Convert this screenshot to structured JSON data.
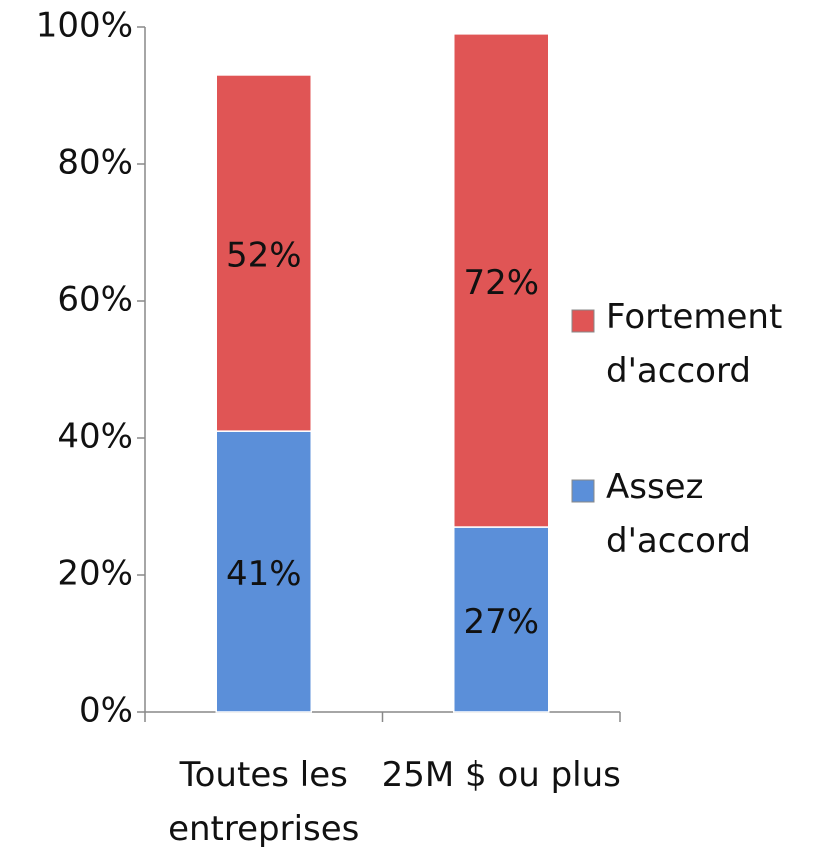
{
  "chart_data": {
    "type": "stacked_bar",
    "categories": [
      "Toutes les entreprises",
      "25M $ ou plus"
    ],
    "series": [
      {
        "name": "Assez d'accord",
        "color": "#5b8fd9",
        "values": [
          41,
          27
        ],
        "value_labels": [
          "41%",
          "27%"
        ]
      },
      {
        "name": "Fortement d'accord",
        "color": "#e05555",
        "values": [
          52,
          72
        ],
        "value_labels": [
          "52%",
          "72%"
        ]
      }
    ],
    "ylim": [
      0,
      100
    ],
    "yticks": [
      {
        "value": 0,
        "label": "0%"
      },
      {
        "value": 20,
        "label": "20%"
      },
      {
        "value": 40,
        "label": "40%"
      },
      {
        "value": 60,
        "label": "60%"
      },
      {
        "value": 80,
        "label": "80%"
      },
      {
        "value": 100,
        "label": "100%"
      }
    ],
    "legend": "right"
  }
}
